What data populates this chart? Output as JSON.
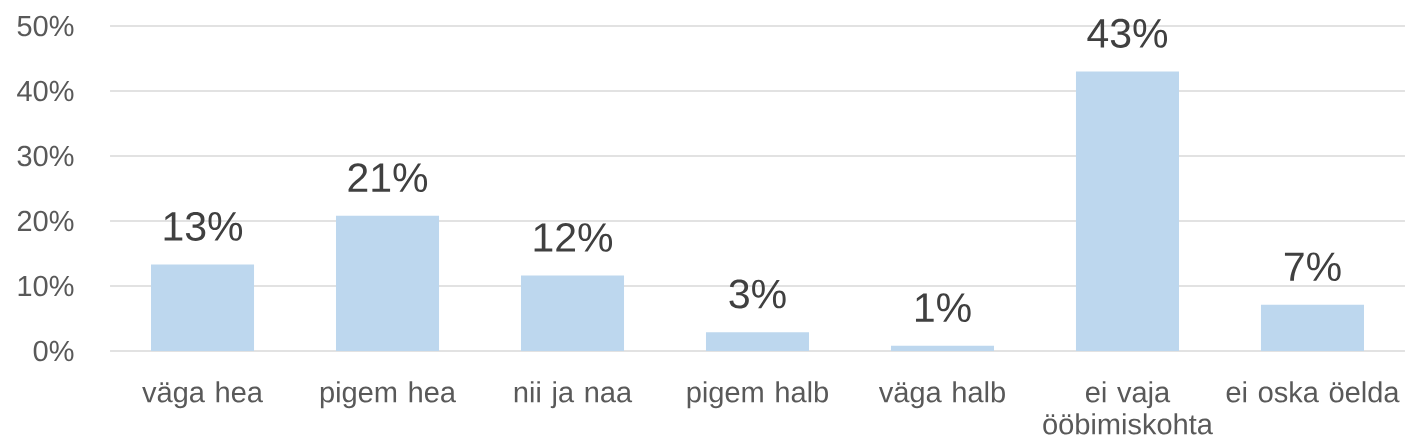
{
  "chart_data": {
    "type": "bar",
    "categories": [
      "väga hea",
      "pigem hea",
      "nii ja naa",
      "pigem halb",
      "väga halb",
      "ei vaja ööbimiskohta",
      "ei oska öelda"
    ],
    "values": [
      13.3,
      20.8,
      11.6,
      2.9,
      0.8,
      43.0,
      7.1
    ],
    "value_labels": [
      "13%",
      "21%",
      "12%",
      "3%",
      "1%",
      "43%",
      "7%"
    ],
    "color": "#bdd7ee",
    "ylim": [
      0,
      50
    ],
    "yticks": [
      {
        "value": 0,
        "label": "0%"
      },
      {
        "value": 10,
        "label": "10%"
      },
      {
        "value": 20,
        "label": "20%"
      },
      {
        "value": 30,
        "label": "30%"
      },
      {
        "value": 40,
        "label": "40%"
      },
      {
        "value": 50,
        "label": "50%"
      }
    ],
    "grid": "y"
  }
}
